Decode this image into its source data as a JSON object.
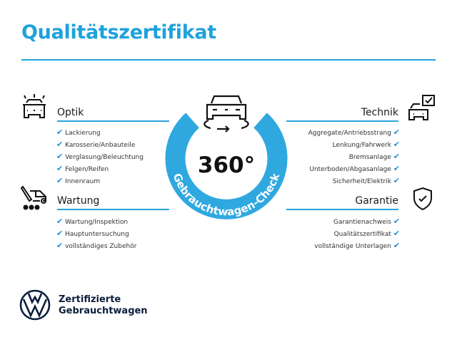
{
  "title": "Qualitätszertifikat",
  "badge": {
    "number": "360°",
    "arc_text": "Gebrauchtwagen-Check"
  },
  "sections": {
    "optik": {
      "heading": "Optik",
      "items": [
        "Lackierung",
        "Karosserie/Anbauteile",
        "Verglasung/Beleuchtung",
        "Felgen/Reifen",
        "Innenraum"
      ]
    },
    "wartung": {
      "heading": "Wartung",
      "items": [
        "Wartung/Inspektion",
        "Hauptuntersuchung",
        "vollständiges Zubehör"
      ]
    },
    "technik": {
      "heading": "Technik",
      "items": [
        "Aggregate/Antriebsstrang",
        "Lenkung/Fahrwerk",
        "Bremsanlage",
        "Unterboden/Abgasanlage",
        "Sicherheit/Elektrik"
      ]
    },
    "garantie": {
      "heading": "Garantie",
      "items": [
        "Garantienachweis",
        "Qualitätszertifikat",
        "vollständige Unterlagen"
      ]
    }
  },
  "check_glyph": "✔",
  "brand": {
    "line1": "Zertifizierte",
    "line2": "Gebrauchtwagen"
  },
  "colors": {
    "accent": "#1ea2dc",
    "ring": "#2fa8e0",
    "check": "#1e90d8",
    "logo": "#0b1e3c"
  }
}
